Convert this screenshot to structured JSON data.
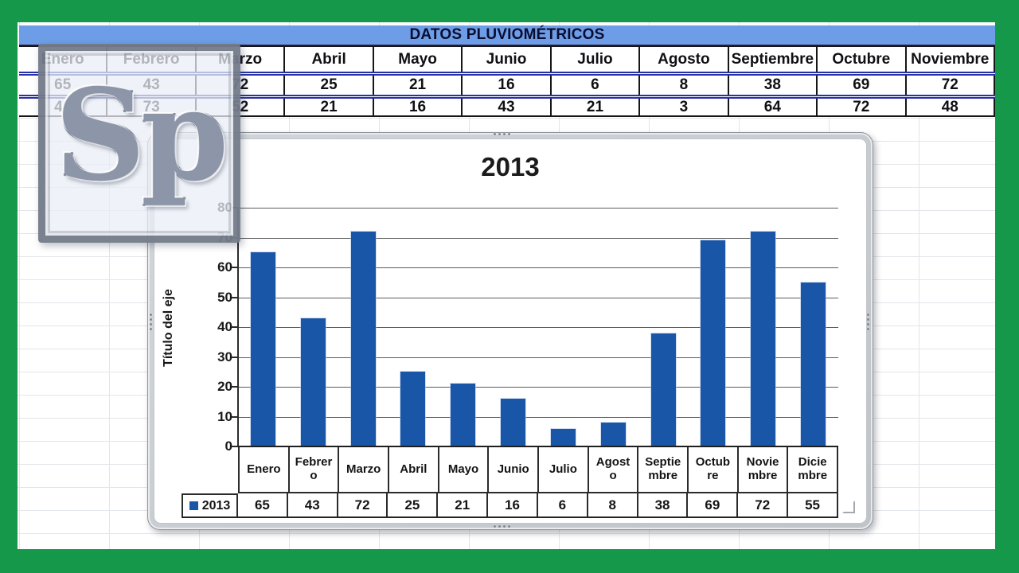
{
  "watermark": {
    "text": "Sp"
  },
  "sheet_table": {
    "title": "DATOS PLUVIOMÉTRICOS",
    "columns": [
      "Enero",
      "Febrero",
      "Marzo",
      "Abril",
      "Mayo",
      "Junio",
      "Julio",
      "Agosto",
      "Septiembre",
      "Octubre",
      "Noviembre"
    ],
    "rows": [
      [
        "65",
        "43",
        "72",
        "25",
        "21",
        "16",
        "6",
        "8",
        "38",
        "69",
        "72"
      ],
      [
        "40",
        "73",
        "52",
        "21",
        "16",
        "43",
        "21",
        "3",
        "64",
        "72",
        "48"
      ]
    ]
  },
  "chart": {
    "title": "2013",
    "y_axis_title": "Título del eje",
    "y_ticks": [
      "80",
      "70",
      "60",
      "50",
      "40",
      "30",
      "20",
      "10",
      "0"
    ],
    "legend_label": "2013",
    "categories_display": [
      "Enero",
      "Febrer\no",
      "Marzo",
      "Abril",
      "Mayo",
      "Junio",
      "Julio",
      "Agost\no",
      "Septie\nmbre",
      "Octub\nre",
      "Novie\nmbre",
      "Dicie\nmbre"
    ],
    "value_labels": [
      "65",
      "43",
      "72",
      "25",
      "21",
      "16",
      "6",
      "8",
      "38",
      "69",
      "72",
      "55"
    ]
  },
  "chart_data": {
    "type": "bar",
    "title": "2013",
    "xlabel": "",
    "ylabel": "Título del eje",
    "categories": [
      "Enero",
      "Febrero",
      "Marzo",
      "Abril",
      "Mayo",
      "Junio",
      "Julio",
      "Agosto",
      "Septiembre",
      "Octubre",
      "Noviembre",
      "Diciembre"
    ],
    "series": [
      {
        "name": "2013",
        "values": [
          65,
          43,
          72,
          25,
          21,
          16,
          6,
          8,
          38,
          69,
          72,
          55
        ]
      }
    ],
    "ylim": [
      0,
      80
    ],
    "ytick_step": 10,
    "grid": true,
    "legend_position": "bottom-left-data-table",
    "bar_color": "#1a56a8"
  },
  "colors": {
    "frame_green": "#16984a",
    "header_blue": "#6d9de6",
    "bar_blue": "#1a56a8",
    "row_border_navy": "#2832a8"
  }
}
